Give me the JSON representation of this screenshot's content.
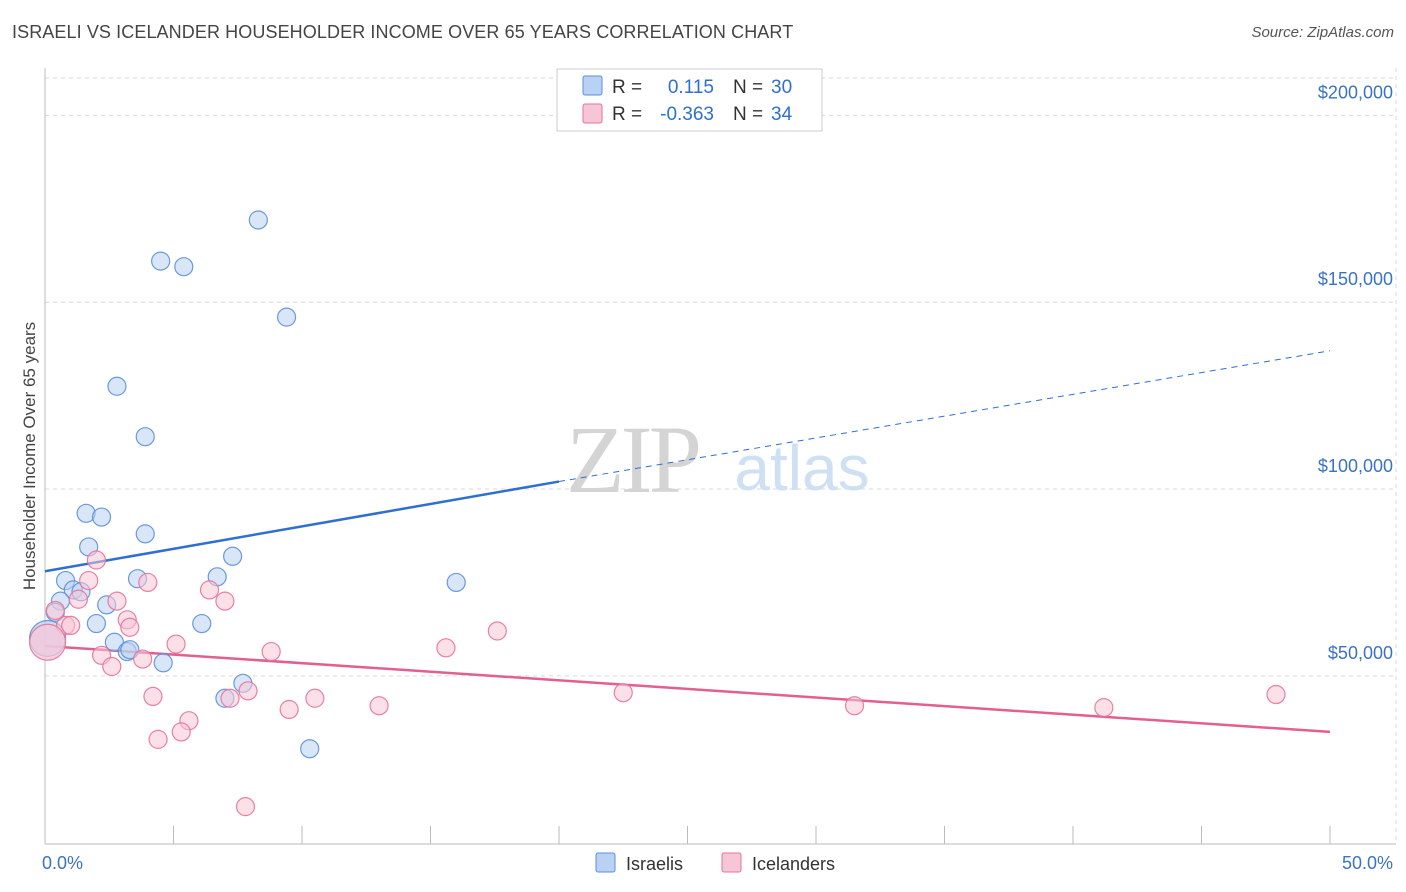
{
  "header": {
    "title": "ISRAELI VS ICELANDER HOUSEHOLDER INCOME OVER 65 YEARS CORRELATION CHART",
    "source": "Source: ZipAtlas.com"
  },
  "colors": {
    "israelis": "#5b8fd9",
    "israelis_fill": "#b9d2f3",
    "icelanders": "#e8729b",
    "icelanders_fill": "#f7c6d6",
    "tick": "#3a73c4",
    "grid": "#d9d9d9"
  },
  "chart_data": {
    "type": "scatter",
    "title": "ISRAELI VS ICELANDER HOUSEHOLDER INCOME OVER 65 YEARS CORRELATION CHART",
    "xlabel": "",
    "ylabel": "Householder Income Over 65 years",
    "xlim": [
      0,
      50
    ],
    "ylim": [
      5000,
      210000
    ],
    "x_tick_labels": [
      "0.0%",
      "50.0%"
    ],
    "y_ticks": [
      50000,
      100000,
      150000,
      200000
    ],
    "y_tick_labels": [
      "$50,000",
      "$100,000",
      "$150,000",
      "$200,000"
    ],
    "grid": true,
    "legend_position": "top-center",
    "watermark": {
      "zip": "ZIP",
      "atlas": "atlas"
    },
    "legend": [
      {
        "r_label": "R =",
        "r_value": "0.115",
        "n_label": "N =",
        "n_value": "30"
      },
      {
        "r_label": "R =",
        "r_value": "-0.363",
        "n_label": "N =",
        "n_value": "34"
      }
    ],
    "series": [
      {
        "name": "Israelis",
        "color": "#5b8fd9",
        "trend": {
          "x0": 0,
          "y0": 78000,
          "x1": 20,
          "y1": 102000,
          "dash_to_x": 50,
          "dash_to_y": 137000
        },
        "points": [
          [
            8.3,
            172000
          ],
          [
            4.5,
            161000
          ],
          [
            5.4,
            159500
          ],
          [
            9.4,
            146000
          ],
          [
            2.8,
            127500
          ],
          [
            3.9,
            114000
          ],
          [
            1.6,
            93500
          ],
          [
            2.2,
            92500
          ],
          [
            3.9,
            88000
          ],
          [
            1.7,
            84500
          ],
          [
            7.3,
            82000
          ],
          [
            0.8,
            75500
          ],
          [
            3.6,
            76000
          ],
          [
            6.7,
            76500
          ],
          [
            16.0,
            75000
          ],
          [
            1.1,
            73000
          ],
          [
            1.4,
            72500
          ],
          [
            0.6,
            70000
          ],
          [
            2.4,
            69000
          ],
          [
            0.4,
            67000
          ],
          [
            2.0,
            64000
          ],
          [
            6.1,
            64000
          ],
          [
            2.7,
            59000
          ],
          [
            3.2,
            56500
          ],
          [
            3.3,
            57000
          ],
          [
            4.6,
            53500
          ],
          [
            7.7,
            48000
          ],
          [
            7.0,
            44000
          ],
          [
            10.3,
            30500
          ],
          [
            0.1,
            60000
          ]
        ]
      },
      {
        "name": "Icelanders",
        "color": "#e8729b",
        "trend": {
          "x0": 0,
          "y0": 58000,
          "x1": 50,
          "y1": 35000
        },
        "points": [
          [
            2.0,
            81000
          ],
          [
            1.7,
            75500
          ],
          [
            4.0,
            75000
          ],
          [
            6.4,
            73000
          ],
          [
            1.3,
            70500
          ],
          [
            2.8,
            70000
          ],
          [
            7.0,
            70000
          ],
          [
            0.4,
            67500
          ],
          [
            3.2,
            65000
          ],
          [
            0.8,
            63500
          ],
          [
            1.0,
            63500
          ],
          [
            3.3,
            63000
          ],
          [
            17.6,
            62000
          ],
          [
            5.1,
            58500
          ],
          [
            15.6,
            57500
          ],
          [
            8.8,
            56500
          ],
          [
            2.2,
            55500
          ],
          [
            3.8,
            54500
          ],
          [
            2.6,
            52500
          ],
          [
            7.9,
            46000
          ],
          [
            22.5,
            45500
          ],
          [
            47.9,
            45000
          ],
          [
            4.2,
            44500
          ],
          [
            7.2,
            44000
          ],
          [
            10.5,
            44000
          ],
          [
            13.0,
            42000
          ],
          [
            31.5,
            42000
          ],
          [
            41.2,
            41500
          ],
          [
            9.5,
            41000
          ],
          [
            5.6,
            38000
          ],
          [
            5.3,
            35000
          ],
          [
            4.4,
            33000
          ],
          [
            7.8,
            15000
          ],
          [
            0.1,
            59000
          ]
        ]
      }
    ]
  },
  "bottom_legend": [
    {
      "label": "Israelis"
    },
    {
      "label": "Icelanders"
    }
  ]
}
